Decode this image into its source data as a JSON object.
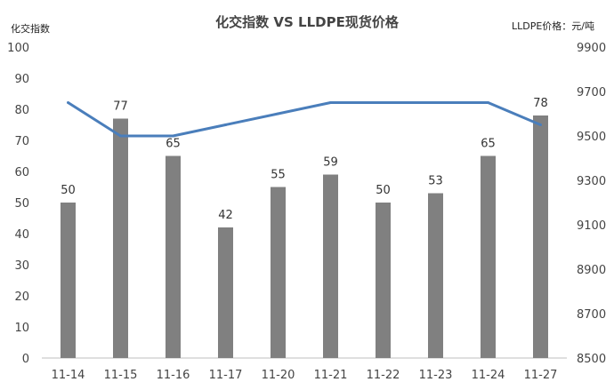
{
  "chart_data": {
    "type": "bar",
    "title": "化交指数 VS LLDPE现货价格",
    "y_left_label": "化交指数",
    "y_right_label": "LLDPE价格：元/吨",
    "categories": [
      "11-14",
      "11-15",
      "11-16",
      "11-17",
      "11-20",
      "11-21",
      "11-22",
      "11-23",
      "11-24",
      "11-27"
    ],
    "series": [
      {
        "type": "bar",
        "axis": "left",
        "values": [
          50,
          77,
          65,
          42,
          55,
          59,
          50,
          53,
          65,
          78
        ],
        "labels": [
          "50",
          "77",
          "65",
          "42",
          "55",
          "59",
          "50",
          "53",
          "65",
          "78"
        ]
      },
      {
        "type": "line",
        "axis": "right",
        "values": [
          9650,
          9500,
          9500,
          9550,
          9600,
          9650,
          9650,
          9650,
          9650,
          9550
        ]
      }
    ],
    "y_left": {
      "min": 0,
      "max": 100,
      "step": 10,
      "ticks": [
        "0",
        "10",
        "20",
        "30",
        "40",
        "50",
        "60",
        "70",
        "80",
        "90",
        "100"
      ]
    },
    "y_right": {
      "min": 8500,
      "max": 9900,
      "step": 200,
      "ticks": [
        "8500",
        "8700",
        "8900",
        "9100",
        "9300",
        "9500",
        "9700",
        "9900"
      ]
    },
    "grid": false,
    "legend": "none",
    "colors": {
      "bar": "#808080",
      "line": "#4a7ebb",
      "axis": "#bfbfbf"
    }
  }
}
